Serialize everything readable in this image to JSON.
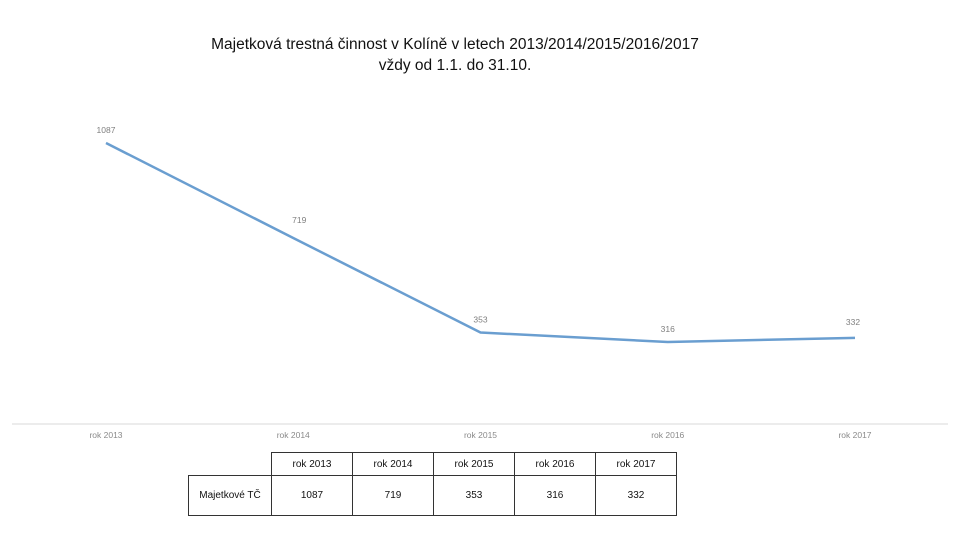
{
  "chart_data": {
    "type": "line",
    "title": "Majetková trestná činnost v Kolíně v letech 2013/2014/2015/2016/2017",
    "subtitle": "vždy od 1.1. do 31.10.",
    "categories": [
      "rok 2013",
      "rok 2014",
      "rok 2015",
      "rok 2016",
      "rok 2017"
    ],
    "series": [
      {
        "name": "Majetkové TČ",
        "values": [
          1087,
          719,
          353,
          316,
          332
        ]
      }
    ],
    "data_labels": [
      "1087",
      "719",
      "353",
      "316",
      "332"
    ],
    "ylim": [
      0,
      1200
    ],
    "line_color": "#6a9ed0",
    "axis_color": "#e6e6e6"
  },
  "table": {
    "row_label": "Majetkové TČ",
    "headers": [
      "rok 2013",
      "rok 2014",
      "rok 2015",
      "rok 2016",
      "rok 2017"
    ],
    "values": [
      "1087",
      "719",
      "353",
      "316",
      "332"
    ]
  }
}
